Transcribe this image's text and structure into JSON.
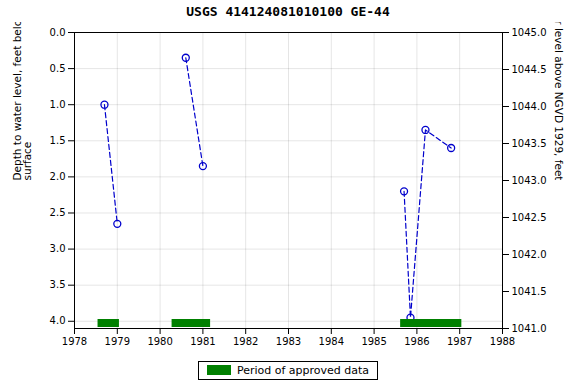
{
  "chart_data": {
    "type": "line",
    "title": "USGS 414124081010100 GE-44",
    "x": [
      1978.7,
      1979.0,
      null,
      1980.6,
      1981.0,
      null,
      1985.7,
      1985.85,
      1986.2,
      1986.8
    ],
    "values": [
      1.0,
      2.65,
      null,
      0.35,
      1.85,
      null,
      2.2,
      3.95,
      1.35,
      1.6
    ],
    "color": "#0000cc",
    "line_style": "dashed",
    "marker": "open_circle",
    "xlim": [
      1978,
      1988
    ],
    "xticks": [
      1978,
      1979,
      1980,
      1981,
      1982,
      1983,
      1984,
      1985,
      1986,
      1987,
      1988
    ],
    "ylim": [
      4.1,
      0.0
    ],
    "yticks": [
      {
        "value": 0.0,
        "label": "0.0"
      },
      0.5,
      {
        "value": 1.0,
        "label": "1.0"
      },
      1.5,
      {
        "value": 2.0,
        "label": "2.0"
      },
      2.5,
      {
        "value": 3.0,
        "label": "3.0"
      },
      3.5,
      {
        "value": 4.0,
        "label": "4.0"
      }
    ],
    "y2lim": [
      1041.0,
      1045.0
    ],
    "y2ticks": [
      {
        "value": 1041.0,
        "label": "1041.0"
      },
      1041.5,
      {
        "value": 1042.0,
        "label": "1042.0"
      },
      1042.5,
      {
        "value": 1043.0,
        "label": "1043.0"
      },
      1043.5,
      {
        "value": 1044.0,
        "label": "1044.0"
      },
      1044.5,
      {
        "value": 1045.0,
        "label": "1045.0"
      }
    ],
    "ylabel": "Depth to water level, feet below land\nsurface",
    "y2label": "Groundwater level above NGVD 1929, feet",
    "periods": {
      "name": "Period of approved data",
      "color": "#008000",
      "ranges": [
        [
          1978.55,
          1979.05
        ],
        [
          1980.28,
          1981.18
        ],
        [
          1985.62,
          1987.05
        ]
      ]
    },
    "grid": true,
    "legend": "bottom"
  }
}
